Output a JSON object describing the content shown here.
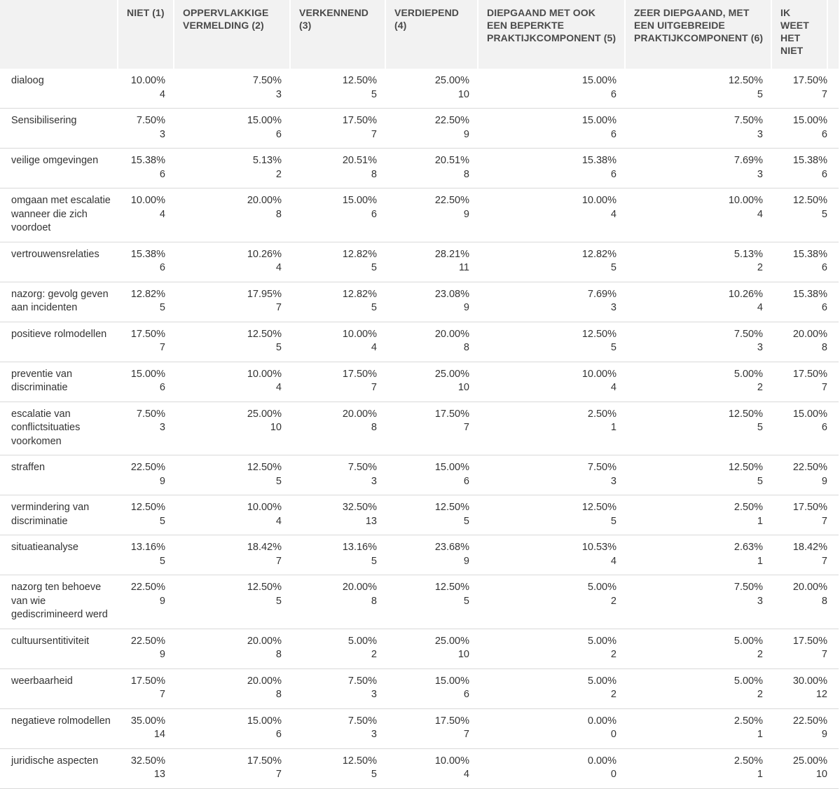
{
  "columns": [
    "NIET (1)",
    "OPPERVLAKKIGE VERMELDING (2)",
    "VERKENNEND (3)",
    "VERDIEPEND (4)",
    "DIEPGAAND MET OOK EEN BEPERKTE PRAKTIJKCOMPONENT (5)",
    "ZEER DIEPGAAND, MET EEN UITGEBREIDE PRAKTIJKCOMPONENT (6)",
    "IK WEET HET NIET"
  ],
  "rows": [
    {
      "label": "dialoog",
      "cells": [
        [
          "10.00%",
          "4"
        ],
        [
          "7.50%",
          "3"
        ],
        [
          "12.50%",
          "5"
        ],
        [
          "25.00%",
          "10"
        ],
        [
          "15.00%",
          "6"
        ],
        [
          "12.50%",
          "5"
        ],
        [
          "17.50%",
          "7"
        ]
      ]
    },
    {
      "label": "Sensibilisering",
      "cells": [
        [
          "7.50%",
          "3"
        ],
        [
          "15.00%",
          "6"
        ],
        [
          "17.50%",
          "7"
        ],
        [
          "22.50%",
          "9"
        ],
        [
          "15.00%",
          "6"
        ],
        [
          "7.50%",
          "3"
        ],
        [
          "15.00%",
          "6"
        ]
      ]
    },
    {
      "label": "veilige omgevingen",
      "cells": [
        [
          "15.38%",
          "6"
        ],
        [
          "5.13%",
          "2"
        ],
        [
          "20.51%",
          "8"
        ],
        [
          "20.51%",
          "8"
        ],
        [
          "15.38%",
          "6"
        ],
        [
          "7.69%",
          "3"
        ],
        [
          "15.38%",
          "6"
        ]
      ]
    },
    {
      "label": "omgaan met escalatie wanneer die zich voordoet",
      "cells": [
        [
          "10.00%",
          "4"
        ],
        [
          "20.00%",
          "8"
        ],
        [
          "15.00%",
          "6"
        ],
        [
          "22.50%",
          "9"
        ],
        [
          "10.00%",
          "4"
        ],
        [
          "10.00%",
          "4"
        ],
        [
          "12.50%",
          "5"
        ]
      ]
    },
    {
      "label": "vertrouwensrelaties",
      "cells": [
        [
          "15.38%",
          "6"
        ],
        [
          "10.26%",
          "4"
        ],
        [
          "12.82%",
          "5"
        ],
        [
          "28.21%",
          "11"
        ],
        [
          "12.82%",
          "5"
        ],
        [
          "5.13%",
          "2"
        ],
        [
          "15.38%",
          "6"
        ]
      ]
    },
    {
      "label": "nazorg: gevolg geven aan incidenten",
      "cells": [
        [
          "12.82%",
          "5"
        ],
        [
          "17.95%",
          "7"
        ],
        [
          "12.82%",
          "5"
        ],
        [
          "23.08%",
          "9"
        ],
        [
          "7.69%",
          "3"
        ],
        [
          "10.26%",
          "4"
        ],
        [
          "15.38%",
          "6"
        ]
      ]
    },
    {
      "label": "positieve rolmodellen",
      "cells": [
        [
          "17.50%",
          "7"
        ],
        [
          "12.50%",
          "5"
        ],
        [
          "10.00%",
          "4"
        ],
        [
          "20.00%",
          "8"
        ],
        [
          "12.50%",
          "5"
        ],
        [
          "7.50%",
          "3"
        ],
        [
          "20.00%",
          "8"
        ]
      ]
    },
    {
      "label": "preventie van discriminatie",
      "cells": [
        [
          "15.00%",
          "6"
        ],
        [
          "10.00%",
          "4"
        ],
        [
          "17.50%",
          "7"
        ],
        [
          "25.00%",
          "10"
        ],
        [
          "10.00%",
          "4"
        ],
        [
          "5.00%",
          "2"
        ],
        [
          "17.50%",
          "7"
        ]
      ]
    },
    {
      "label": "escalatie van conflictsituaties voorkomen",
      "cells": [
        [
          "7.50%",
          "3"
        ],
        [
          "25.00%",
          "10"
        ],
        [
          "20.00%",
          "8"
        ],
        [
          "17.50%",
          "7"
        ],
        [
          "2.50%",
          "1"
        ],
        [
          "12.50%",
          "5"
        ],
        [
          "15.00%",
          "6"
        ]
      ]
    },
    {
      "label": "straffen",
      "cells": [
        [
          "22.50%",
          "9"
        ],
        [
          "12.50%",
          "5"
        ],
        [
          "7.50%",
          "3"
        ],
        [
          "15.00%",
          "6"
        ],
        [
          "7.50%",
          "3"
        ],
        [
          "12.50%",
          "5"
        ],
        [
          "22.50%",
          "9"
        ]
      ]
    },
    {
      "label": "vermindering van discriminatie",
      "cells": [
        [
          "12.50%",
          "5"
        ],
        [
          "10.00%",
          "4"
        ],
        [
          "32.50%",
          "13"
        ],
        [
          "12.50%",
          "5"
        ],
        [
          "12.50%",
          "5"
        ],
        [
          "2.50%",
          "1"
        ],
        [
          "17.50%",
          "7"
        ]
      ]
    },
    {
      "label": "situatieanalyse",
      "cells": [
        [
          "13.16%",
          "5"
        ],
        [
          "18.42%",
          "7"
        ],
        [
          "13.16%",
          "5"
        ],
        [
          "23.68%",
          "9"
        ],
        [
          "10.53%",
          "4"
        ],
        [
          "2.63%",
          "1"
        ],
        [
          "18.42%",
          "7"
        ]
      ]
    },
    {
      "label": "nazorg ten behoeve van wie gediscrimineerd werd",
      "cells": [
        [
          "22.50%",
          "9"
        ],
        [
          "12.50%",
          "5"
        ],
        [
          "20.00%",
          "8"
        ],
        [
          "12.50%",
          "5"
        ],
        [
          "5.00%",
          "2"
        ],
        [
          "7.50%",
          "3"
        ],
        [
          "20.00%",
          "8"
        ]
      ]
    },
    {
      "label": "cultuursentitiviteit",
      "cells": [
        [
          "22.50%",
          "9"
        ],
        [
          "20.00%",
          "8"
        ],
        [
          "5.00%",
          "2"
        ],
        [
          "25.00%",
          "10"
        ],
        [
          "5.00%",
          "2"
        ],
        [
          "5.00%",
          "2"
        ],
        [
          "17.50%",
          "7"
        ]
      ]
    },
    {
      "label": "weerbaarheid",
      "cells": [
        [
          "17.50%",
          "7"
        ],
        [
          "20.00%",
          "8"
        ],
        [
          "7.50%",
          "3"
        ],
        [
          "15.00%",
          "6"
        ],
        [
          "5.00%",
          "2"
        ],
        [
          "5.00%",
          "2"
        ],
        [
          "30.00%",
          "12"
        ]
      ]
    },
    {
      "label": "negatieve rolmodellen",
      "cells": [
        [
          "35.00%",
          "14"
        ],
        [
          "15.00%",
          "6"
        ],
        [
          "7.50%",
          "3"
        ],
        [
          "17.50%",
          "7"
        ],
        [
          "0.00%",
          "0"
        ],
        [
          "2.50%",
          "1"
        ],
        [
          "22.50%",
          "9"
        ]
      ]
    },
    {
      "label": "juridische aspecten",
      "cells": [
        [
          "32.50%",
          "13"
        ],
        [
          "17.50%",
          "7"
        ],
        [
          "12.50%",
          "5"
        ],
        [
          "10.00%",
          "4"
        ],
        [
          "0.00%",
          "0"
        ],
        [
          "2.50%",
          "1"
        ],
        [
          "25.00%",
          "10"
        ]
      ]
    }
  ]
}
